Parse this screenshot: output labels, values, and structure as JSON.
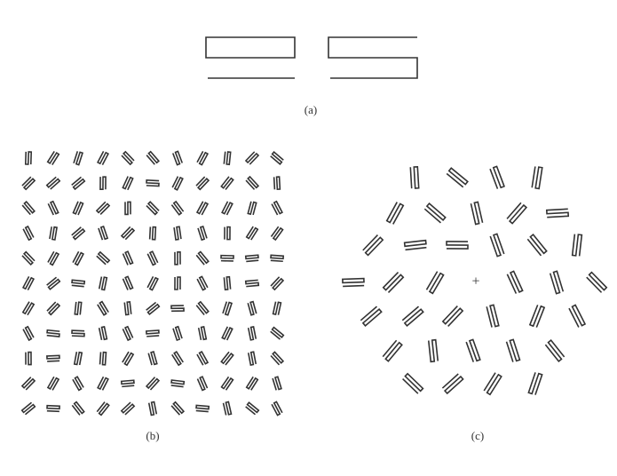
{
  "figure": {
    "label_a": "(a)",
    "label_b": "(b)",
    "label_c": "(c)",
    "fixation": "+"
  }
}
